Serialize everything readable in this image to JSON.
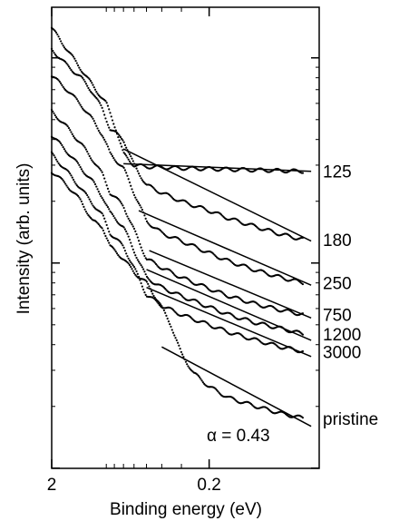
{
  "chart_data": {
    "type": "scatter",
    "title": "",
    "xlabel": "Binding energy (eV)",
    "ylabel": "Intensity (arb. units)",
    "x_scale": "log",
    "x_reversed": true,
    "xlim": [
      2,
      0.04
    ],
    "y_scale": "log",
    "x_ticks": [
      "2",
      "0.2"
    ],
    "grid": false,
    "legend": "none",
    "annotation": "α = 0.43",
    "marker_color": "#000000",
    "series": [
      {
        "name": "125",
        "x": [
          2.0,
          1.6,
          1.3,
          1.05,
          0.9,
          0.78,
          0.7,
          0.6,
          0.5,
          0.4,
          0.3,
          0.2,
          0.15,
          0.1,
          0.07,
          0.05
        ],
        "y": [
          140,
          110,
          88,
          70,
          60,
          45,
          34,
          30,
          29.5,
          29.3,
          29,
          28.8,
          28.6,
          28.4,
          28.2,
          28
        ]
      },
      {
        "name": "180",
        "x": [
          2.0,
          1.6,
          1.3,
          1.1,
          0.95,
          0.85,
          0.7,
          0.6,
          0.5,
          0.4,
          0.3,
          0.2,
          0.15,
          0.1,
          0.07,
          0.05
        ],
        "y": [
          110,
          92,
          80,
          68,
          56,
          45,
          40,
          30,
          24,
          22,
          20,
          18,
          16.5,
          15,
          13.8,
          13
        ]
      },
      {
        "name": "250",
        "x": [
          2.0,
          1.6,
          1.3,
          1.1,
          0.95,
          0.85,
          0.7,
          0.6,
          0.5,
          0.4,
          0.3,
          0.2,
          0.15,
          0.1,
          0.07,
          0.05
        ],
        "y": [
          82,
          70,
          59,
          50,
          42,
          34,
          29,
          22,
          16,
          14,
          12.8,
          11.2,
          10.2,
          9.2,
          8.5,
          8
        ]
      },
      {
        "name": "750",
        "x": [
          2.0,
          1.6,
          1.3,
          1.1,
          0.95,
          0.85,
          0.7,
          0.6,
          0.5,
          0.4,
          0.3,
          0.2,
          0.15,
          0.1,
          0.07,
          0.05
        ],
        "y": [
          55,
          46,
          38,
          32,
          27,
          22,
          19,
          14.5,
          10.5,
          9.5,
          8.5,
          7.5,
          6.9,
          6.3,
          5.9,
          5.6
        ]
      },
      {
        "name": "1200",
        "x": [
          2.0,
          1.6,
          1.3,
          1.1,
          0.95,
          0.85,
          0.7,
          0.6,
          0.5,
          0.4,
          0.3,
          0.2,
          0.15,
          0.1,
          0.07,
          0.05
        ],
        "y": [
          42,
          35,
          29,
          25,
          21,
          17.5,
          15,
          11.5,
          8.5,
          7.6,
          6.9,
          6.1,
          5.6,
          5.1,
          4.8,
          4.5
        ]
      },
      {
        "name": "3000",
        "x": [
          2.0,
          1.6,
          1.3,
          1.1,
          0.95,
          0.85,
          0.7,
          0.6,
          0.5,
          0.4,
          0.3,
          0.2,
          0.15,
          0.1,
          0.07,
          0.05
        ],
        "y": [
          34,
          28,
          23,
          19.5,
          17,
          14,
          12,
          9.5,
          7,
          6.2,
          5.6,
          5,
          4.6,
          4.2,
          3.9,
          3.7
        ]
      },
      {
        "name": "pristine",
        "x": [
          2.0,
          1.6,
          1.3,
          1.1,
          0.95,
          0.85,
          0.7,
          0.6,
          0.5,
          0.42,
          0.35,
          0.3,
          0.25,
          0.2,
          0.15,
          0.1,
          0.07,
          0.05
        ],
        "y": [
          28,
          24,
          20,
          16,
          15,
          12,
          10.5,
          9,
          8,
          6.5,
          5,
          3.6,
          2.9,
          2.5,
          2.2,
          2.0,
          1.85,
          1.75
        ]
      }
    ],
    "fit_lines": [
      {
        "series": "180",
        "x": [
          0.7,
          0.045
        ],
        "y": [
          36,
          12.8
        ]
      },
      {
        "series": "250",
        "x": [
          0.56,
          0.045
        ],
        "y": [
          18,
          7.8
        ]
      },
      {
        "series": "750",
        "x": [
          0.48,
          0.045
        ],
        "y": [
          11.5,
          5.4
        ]
      },
      {
        "series": "1200",
        "x": [
          0.5,
          0.045
        ],
        "y": [
          9.3,
          4.2
        ]
      },
      {
        "series": "3000",
        "x": [
          0.5,
          0.045
        ],
        "y": [
          7.6,
          3.5
        ]
      },
      {
        "series": "pristine",
        "x": [
          0.4,
          0.045
        ],
        "y": [
          3.9,
          1.6
        ]
      }
    ],
    "flat_line": {
      "series": "125",
      "x": [
        0.7,
        0.045
      ],
      "y": [
        30.5,
        28
      ]
    }
  }
}
